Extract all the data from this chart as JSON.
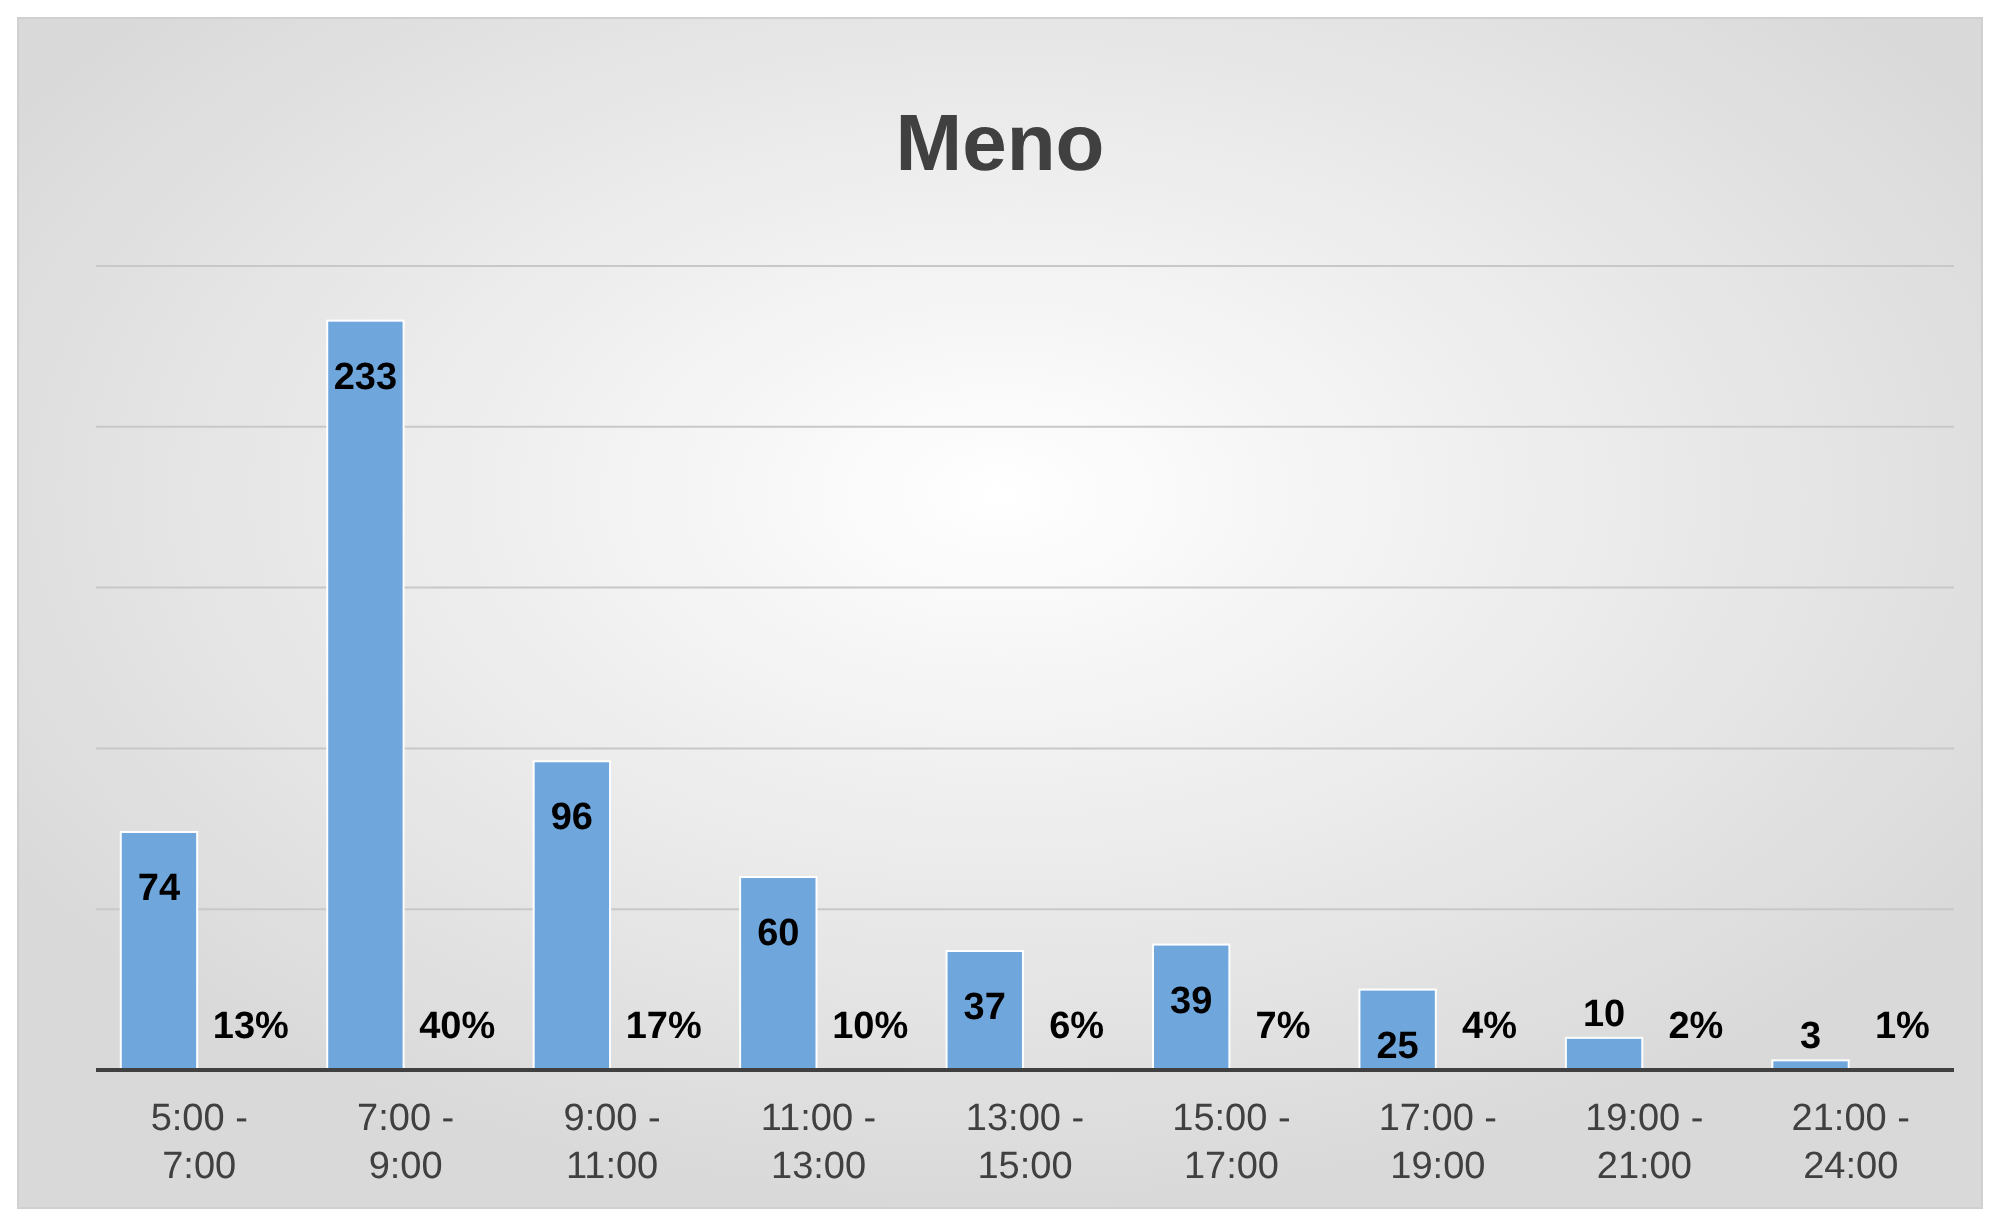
{
  "chart_data": {
    "type": "bar",
    "title": "Meno",
    "categories": [
      "5:00 - 7:00",
      "7:00 - 9:00",
      "9:00 - 11:00",
      "11:00 - 13:00",
      "13:00 - 15:00",
      "15:00 - 17:00",
      "17:00 - 19:00",
      "19:00 - 21:00",
      "21:00 - 24:00"
    ],
    "values": [
      74,
      233,
      96,
      60,
      37,
      39,
      25,
      10,
      3
    ],
    "color": "#6fa6dc",
    "data_labels": true,
    "ylim": [
      0,
      250
    ],
    "yticks": [
      {
        "value": 0,
        "label": null
      },
      {
        "value": 50,
        "label": null
      },
      {
        "value": 100,
        "label": null
      },
      {
        "value": 150,
        "label": null
      },
      {
        "value": 200,
        "label": null
      },
      {
        "value": 250,
        "label": null
      }
    ],
    "grid": "y",
    "tick_labels": "x",
    "annotations": [
      {
        "text": "13%",
        "x": "5:00 - 7:00",
        "y": 0
      },
      {
        "text": "40%",
        "x": "7:00 - 9:00",
        "y": 0
      },
      {
        "text": "17%",
        "x": "9:00 - 11:00",
        "y": 0
      },
      {
        "text": "10%",
        "x": "11:00 - 13:00",
        "y": 0
      },
      {
        "text": "6%",
        "x": "13:00 - 15:00",
        "y": 0
      },
      {
        "text": "7%",
        "x": "15:00 - 17:00",
        "y": 0
      },
      {
        "text": "4%",
        "x": "17:00 - 19:00",
        "y": 0
      },
      {
        "text": "2%",
        "x": "19:00 - 21:00",
        "y": 0
      },
      {
        "text": "1%",
        "x": "21:00 - 24:00",
        "y": 0
      }
    ]
  }
}
